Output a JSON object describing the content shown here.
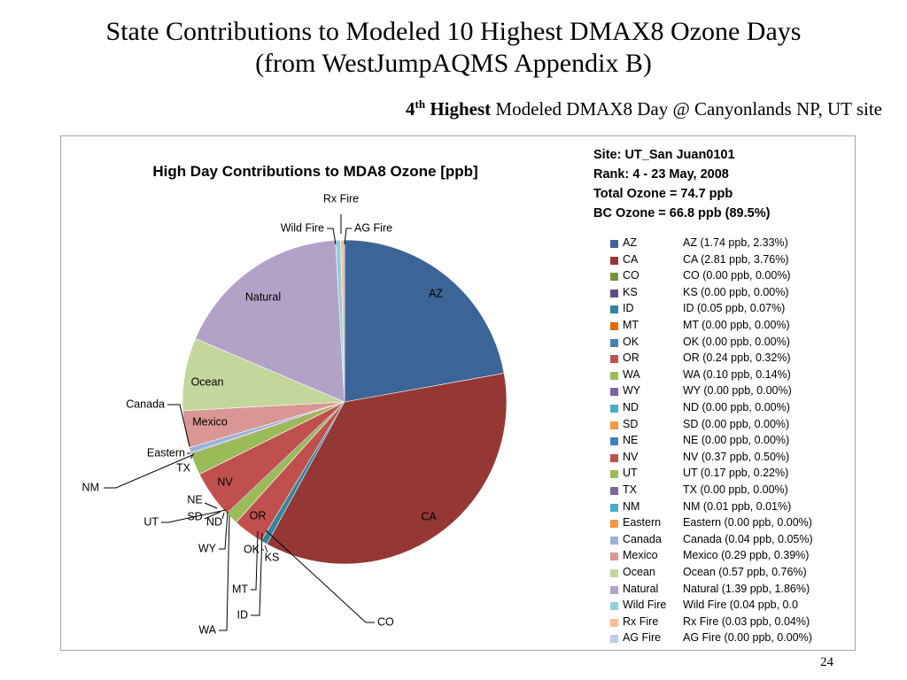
{
  "slide": {
    "title_line1": "State Contributions to Modeled 10 Highest DMAX8 Ozone Days",
    "title_line2": "(from WestJumpAQMS Appendix B)",
    "subtitle_num": "4",
    "subtitle_sup": "th",
    "subtitle_bold": " Highest",
    "subtitle_rest": " Modeled DMAX8 Day @ Canyonlands NP, UT site",
    "page_number": "24"
  },
  "info": {
    "site": "Site: UT_San Juan0101",
    "rank": "Rank: 4 - 23 May, 2008",
    "total": "Total Ozone = 74.7 ppb",
    "bc": "BC Ozone = 66.8 ppb (89.5%)"
  },
  "chart_data": {
    "type": "pie",
    "title": "High Day Contributions to MDA8 Ozone [ppb]",
    "units": "ppb",
    "series": [
      {
        "name": "AZ",
        "value": 1.74,
        "color": "#3d6496",
        "legend": "AZ (1.74 ppb, 2.33%)"
      },
      {
        "name": "CA",
        "value": 2.81,
        "color": "#953735",
        "legend": "CA (2.81 ppb, 3.76%)"
      },
      {
        "name": "CO",
        "value": 0.0,
        "color": "#76923c",
        "legend": "CO (0.00 ppb, 0.00%)"
      },
      {
        "name": "KS",
        "value": 0.0,
        "color": "#5f4b8b",
        "legend": "KS (0.00 ppb, 0.00%)"
      },
      {
        "name": "ID",
        "value": 0.05,
        "color": "#31859c",
        "legend": "ID (0.05 ppb, 0.07%)"
      },
      {
        "name": "MT",
        "value": 0.0,
        "color": "#e46c0a",
        "legend": "MT (0.00 ppb, 0.00%)"
      },
      {
        "name": "OK",
        "value": 0.0,
        "color": "#4a7ebb",
        "legend": "OK (0.00 ppb, 0.00%)"
      },
      {
        "name": "OR",
        "value": 0.24,
        "color": "#c0504d",
        "legend": "OR (0.24 ppb, 0.32%)"
      },
      {
        "name": "WA",
        "value": 0.1,
        "color": "#9bbb59",
        "legend": "WA (0.10 ppb, 0.14%)"
      },
      {
        "name": "WY",
        "value": 0.0,
        "color": "#8064a2",
        "legend": "WY (0.00 ppb, 0.00%)"
      },
      {
        "name": "ND",
        "value": 0.0,
        "color": "#4bacc6",
        "legend": "ND (0.00 ppb, 0.00%)"
      },
      {
        "name": "SD",
        "value": 0.0,
        "color": "#f79646",
        "legend": "SD (0.00 ppb, 0.00%)"
      },
      {
        "name": "NE",
        "value": 0.0,
        "color": "#3e80c1",
        "legend": "NE (0.00 ppb, 0.00%)"
      },
      {
        "name": "NV",
        "value": 0.37,
        "color": "#c0504d",
        "legend": "NV (0.37 ppb, 0.50%)"
      },
      {
        "name": "UT",
        "value": 0.17,
        "color": "#9bbb59",
        "legend": "UT (0.17 ppb, 0.22%)"
      },
      {
        "name": "TX",
        "value": 0.0,
        "color": "#8064a2",
        "legend": "TX (0.00 ppb, 0.00%)"
      },
      {
        "name": "NM",
        "value": 0.01,
        "color": "#4bacc6",
        "legend": "NM (0.01 ppb, 0.01%)"
      },
      {
        "name": "Eastern",
        "value": 0.0,
        "color": "#f79646",
        "legend": "Eastern (0.00 ppb, 0.00%)"
      },
      {
        "name": "Canada",
        "value": 0.04,
        "color": "#95b3d7",
        "legend": "Canada (0.04 ppb, 0.05%)"
      },
      {
        "name": "Mexico",
        "value": 0.29,
        "color": "#d99694",
        "legend": "Mexico (0.29 ppb, 0.39%)"
      },
      {
        "name": "Ocean",
        "value": 0.57,
        "color": "#c3d69b",
        "legend": "Ocean (0.57 ppb, 0.76%)"
      },
      {
        "name": "Natural",
        "value": 1.39,
        "color": "#b3a2c7",
        "legend": "Natural (1.39 ppb, 1.86%)"
      },
      {
        "name": "Wild Fire",
        "value": 0.04,
        "color": "#93cddd",
        "legend": "Wild Fire (0.04 ppb, 0.0"
      },
      {
        "name": "Rx Fire",
        "value": 0.03,
        "color": "#fac090",
        "legend": "Rx Fire (0.03 ppb, 0.04%)"
      },
      {
        "name": "AG Fire",
        "value": 0.0,
        "color": "#b9cde5",
        "legend": "AG Fire (0.00 ppb, 0.00%)"
      }
    ]
  }
}
